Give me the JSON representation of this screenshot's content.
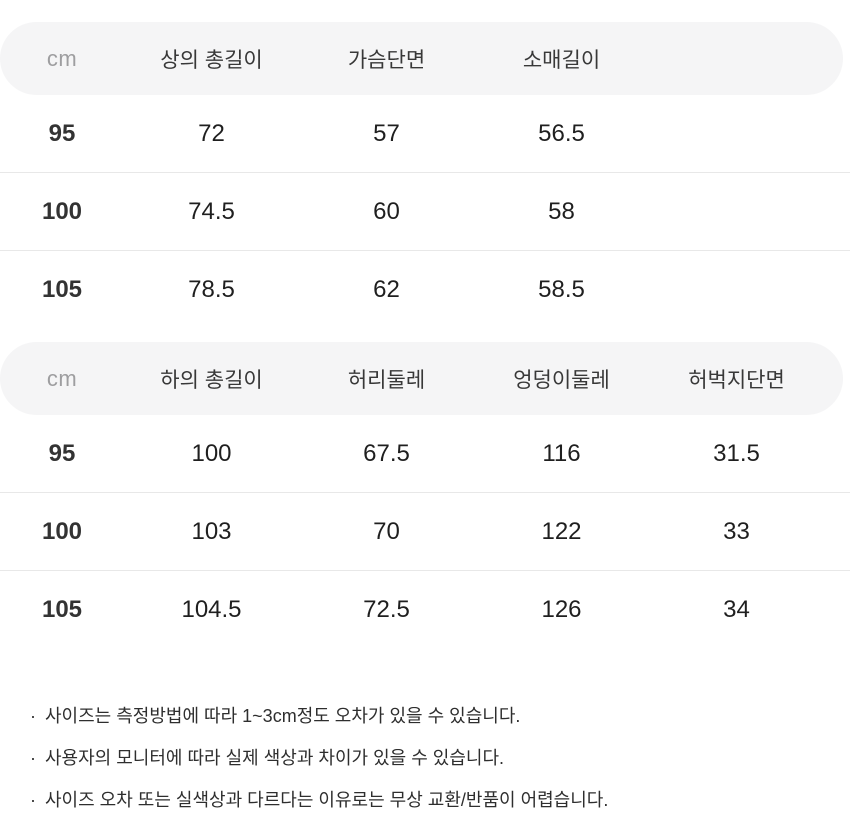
{
  "tables": [
    {
      "unit": "cm",
      "columns": [
        "상의 총길이",
        "가슴단면",
        "소매길이"
      ],
      "rows": [
        {
          "size": "95",
          "values": [
            "72",
            "57",
            "56.5"
          ]
        },
        {
          "size": "100",
          "values": [
            "74.5",
            "60",
            "58"
          ]
        },
        {
          "size": "105",
          "values": [
            "78.5",
            "62",
            "58.5"
          ]
        }
      ]
    },
    {
      "unit": "cm",
      "columns": [
        "하의 총길이",
        "허리둘레",
        "엉덩이둘레",
        "허벅지단면"
      ],
      "rows": [
        {
          "size": "95",
          "values": [
            "100",
            "67.5",
            "116",
            "31.5"
          ]
        },
        {
          "size": "100",
          "values": [
            "103",
            "70",
            "122",
            "33"
          ]
        },
        {
          "size": "105",
          "values": [
            "104.5",
            "72.5",
            "126",
            "34"
          ]
        }
      ]
    }
  ],
  "notes": {
    "bullet": "·",
    "items": [
      "사이즈는 측정방법에 따라 1~3cm정도 오차가 있을 수 있습니다.",
      "사용자의 모니터에 따라 실제 색상과 차이가 있을 수 있습니다.",
      "사이즈 오차 또는 실색상과 다르다는 이유로는 무상 교환/반품이 어렵습니다."
    ]
  },
  "colors": {
    "header_bg": "#f5f5f6",
    "divider": "#e8e8e8",
    "unit_text": "#9e9ea0",
    "column_header_text": "#383838",
    "size_text": "#333333",
    "value_text": "#1f1f1f",
    "note_text": "#2e2e2e"
  }
}
